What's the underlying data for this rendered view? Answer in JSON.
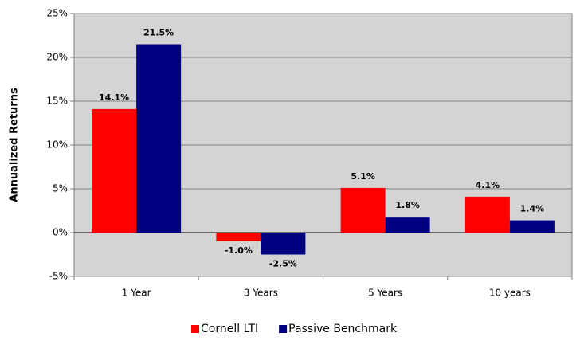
{
  "chart_data": {
    "type": "bar",
    "ylabel": "Annualized Returns",
    "categories": [
      "1 Year",
      "3 Years",
      "5 Years",
      "10 years"
    ],
    "series": [
      {
        "name": "Cornell LTI",
        "color": "#ff0000",
        "values": [
          14.1,
          -1.0,
          5.1,
          4.1
        ],
        "value_labels": [
          "14.1%",
          "-1.0%",
          "5.1%",
          "4.1%"
        ]
      },
      {
        "name": "Passive Benchmark",
        "color": "#000080",
        "values": [
          21.5,
          -2.5,
          1.8,
          1.4
        ],
        "value_labels": [
          "21.5%",
          "-2.5%",
          "1.8%",
          "1.4%"
        ]
      }
    ],
    "ylim": [
      -5,
      25
    ],
    "yticks": [
      {
        "value": -5,
        "label": "-5%"
      },
      {
        "value": 0,
        "label": "0%"
      },
      {
        "value": 5,
        "label": "5%"
      },
      {
        "value": 10,
        "label": "10%"
      },
      {
        "value": 15,
        "label": "15%"
      },
      {
        "value": 20,
        "label": "20%"
      },
      {
        "value": 25,
        "label": "25%"
      }
    ],
    "grid": true,
    "legend": "bottom"
  }
}
